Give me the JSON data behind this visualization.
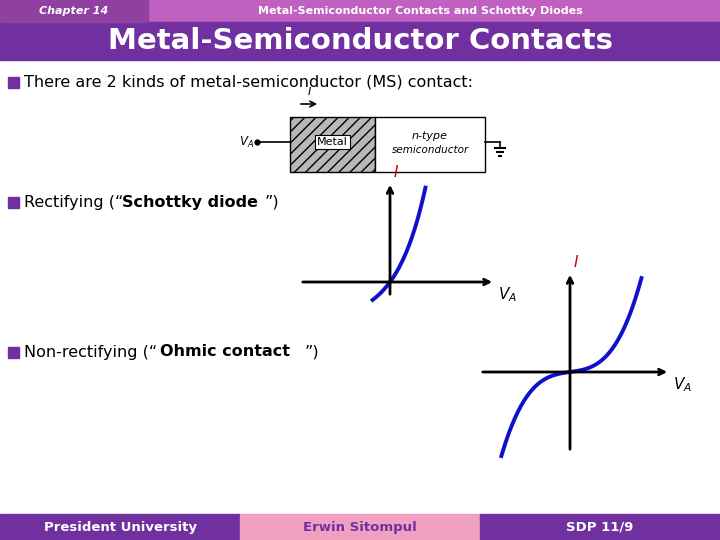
{
  "main_title": "Metal-Semiconductor Contacts",
  "chapter_label": "Chapter 14",
  "chapter_subtitle": "Metal-Semiconductor Contacts and Schottky Diodes",
  "bullet1": "There are 2 kinds of metal-semiconductor (MS) contact:",
  "bullet2_pre": "Rectifying (“",
  "bullet2_bold": "Schottky diode",
  "bullet2_post": "”)",
  "bullet3_pre": "Non-rectifying (“",
  "bullet3_bold": "Ohmic contact",
  "bullet3_post": "”)",
  "footer_left": "President University",
  "footer_mid": "Erwin Sitompul",
  "footer_right": "SDP 11/9",
  "bg_color": "#ffffff",
  "title_strip_color": "#c060c0",
  "main_title_bg": "#7030a0",
  "chapter_box_color": "#c060c0",
  "footer_left_bg": "#7030a0",
  "footer_mid_bg": "#f0a0c0",
  "footer_right_bg": "#7030a0",
  "bullet_color": "#7030a0",
  "curve_color": "#1010cc",
  "axis_color": "#000000",
  "label_I_color": "#cc0000",
  "label_VA_color": "#333333"
}
